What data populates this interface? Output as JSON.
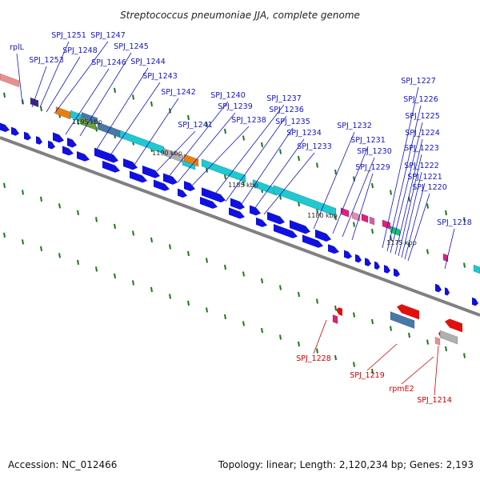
{
  "title": "Streptococcus pneumoniae JJA, complete genome",
  "footer": {
    "accession": "Accession: NC_012466",
    "topology": "Topology: linear; Length: 2,120,234 bp; Genes: 2,193"
  },
  "scale_markers": [
    "1195 kbp",
    "1190 kbp",
    "1185 kbp",
    "1180 kbp",
    "1175 kbp"
  ],
  "forward_labels": [
    "rplL",
    "SPJ_1251",
    "SPJ_1247",
    "SPJ_1253",
    "SPJ_1248",
    "SPJ_1245",
    "SPJ_1246",
    "SPJ_1244",
    "SPJ_1243",
    "SPJ_1242",
    "SPJ_1240",
    "SPJ_1239",
    "SPJ_1241",
    "SPJ_1238",
    "SPJ_1237",
    "SPJ_1236",
    "SPJ_1235",
    "SPJ_1234",
    "SPJ_1233",
    "SPJ_1232",
    "SPJ_1231",
    "SPJ_1230",
    "SPJ_1229",
    "SPJ_1227",
    "SPJ_1226",
    "SPJ_1225",
    "SPJ_1224",
    "SPJ_1223",
    "SPJ_1222",
    "SPJ_1221",
    "SPJ_1220",
    "SPJ_1218"
  ],
  "reverse_labels": [
    "SPJ_1228",
    "SPJ_1219",
    "rpmE2",
    "SPJ_1214"
  ],
  "colors": {
    "label_forward": "#1414c8",
    "label_reverse": "#d00000",
    "axis": "#808080",
    "tick": "#1a7a1a",
    "gene_forward": "#1010e0",
    "feature_cyan": "#20c8d0",
    "feature_pink": "#e0207a",
    "feature_orange": "#e88010",
    "feature_gray": "#b0b0b0",
    "feature_steel": "#4878a8",
    "feature_red": "#e01010",
    "feature_green": "#10c870"
  }
}
